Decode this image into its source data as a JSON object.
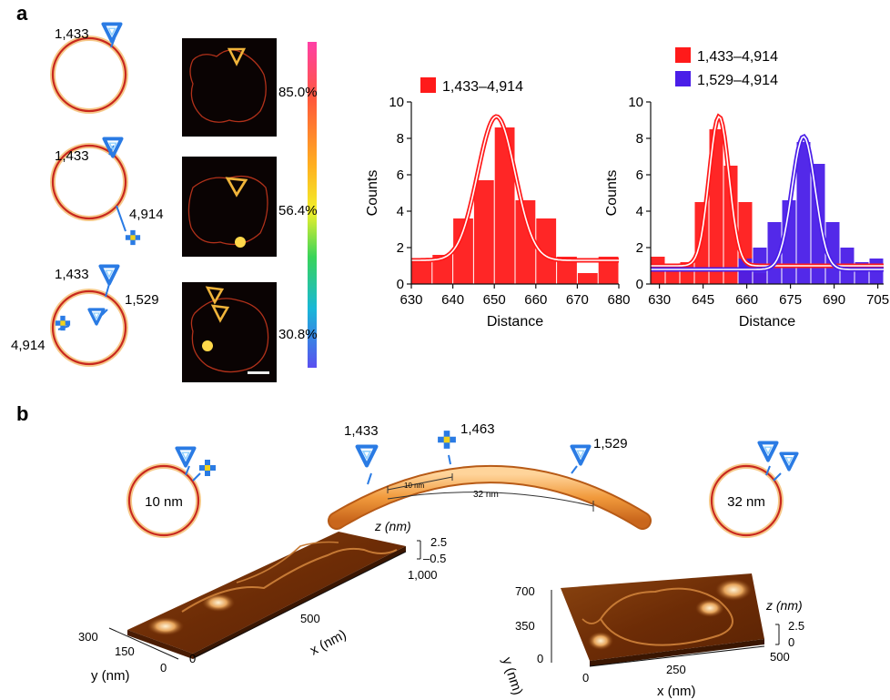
{
  "panel_a": {
    "letter": "a",
    "diagrams": [
      {
        "labels": [
          "1,433"
        ]
      },
      {
        "labels": [
          "1,433",
          "4,914"
        ]
      },
      {
        "labels": [
          "1,433",
          "1,529",
          "4,914"
        ]
      }
    ],
    "colorbar": {
      "labels": [
        "85.0%",
        "56.4%",
        "30.8%"
      ]
    }
  },
  "panel_b": {
    "letter": "b",
    "left_circle_label": "10 nm",
    "right_circle_label": "32 nm",
    "arc": {
      "site_labels": [
        "1,433",
        "1,463",
        "1,529"
      ],
      "dist_short": "10 nm",
      "dist_long": "32 nm"
    },
    "afm_left": {
      "z_axis": "z (nm)",
      "z_ticks": [
        "2.5",
        "–0.5"
      ],
      "x_axis": "x (nm)",
      "x_ticks": [
        "0",
        "500",
        "1,000"
      ],
      "y_axis": "y (nm)",
      "y_ticks": [
        "300",
        "150",
        "0"
      ]
    },
    "afm_right": {
      "z_axis": "z (nm)",
      "z_ticks": [
        "2.5",
        "0"
      ],
      "x_axis": "x (nm)",
      "x_ticks": [
        "0",
        "250",
        "500"
      ],
      "y_axis": "y (nm)",
      "y_ticks": [
        "700",
        "350",
        "0"
      ]
    }
  },
  "colors": {
    "ring": "#c8281e",
    "ring_fill": "#f6c98a",
    "marker": "#2a7be4",
    "red": "#ff1a1a",
    "blue": "#4a1ee8",
    "afm": "#7a3408"
  },
  "chart_data": [
    {
      "type": "bar",
      "xlabel": "Distance",
      "ylabel": "Counts",
      "xlim": [
        630,
        680
      ],
      "ylim": [
        0,
        10
      ],
      "xticks": [
        630,
        640,
        650,
        660,
        670,
        680
      ],
      "yticks": [
        0,
        2,
        4,
        6,
        8,
        10
      ],
      "legend": [
        "1,433–4,914"
      ],
      "series": [
        {
          "name": "1,433–4,914",
          "color": "#ff1a1a",
          "bins": [
            [
              630,
              635,
              1.2
            ],
            [
              635,
              640,
              1.6
            ],
            [
              640,
              645,
              3.6
            ],
            [
              645,
              650,
              5.7
            ],
            [
              650,
              655,
              8.6
            ],
            [
              655,
              660,
              4.6
            ],
            [
              660,
              665,
              3.6
            ],
            [
              665,
              670,
              1.5
            ],
            [
              670,
              675,
              0.6
            ],
            [
              675,
              680,
              1.5
            ]
          ],
          "fit": {
            "mean": 650.5,
            "sd": 4.5,
            "peak": 7.9,
            "base": 1.3
          }
        }
      ]
    },
    {
      "type": "bar",
      "xlabel": "Distance",
      "ylabel": "Counts",
      "xlim": [
        627,
        707
      ],
      "ylim": [
        0,
        10
      ],
      "xticks": [
        630,
        645,
        660,
        675,
        690,
        705
      ],
      "yticks": [
        0,
        2,
        4,
        6,
        8,
        10
      ],
      "legend": [
        "1,433–4,914",
        "1,529–4,914"
      ],
      "series": [
        {
          "name": "1,433–4,914",
          "color": "#ff1a1a",
          "bins": [
            [
              627,
              632,
              1.5
            ],
            [
              632,
              637,
              0.7
            ],
            [
              637,
              642,
              1.2
            ],
            [
              642,
              647,
              4.5
            ],
            [
              647,
              652,
              8.5
            ],
            [
              652,
              657,
              6.5
            ],
            [
              657,
              662,
              4.5
            ],
            [
              662,
              667,
              0.6
            ]
          ],
          "fit": {
            "mean": 650.5,
            "sd": 3.4,
            "peak": 8.2,
            "base": 1.0
          }
        },
        {
          "name": "1,529–4,914",
          "color": "#4a1ee8",
          "bins": [
            [
              657,
              662,
              1.4
            ],
            [
              662,
              667,
              2.0
            ],
            [
              667,
              672,
              3.4
            ],
            [
              672,
              677,
              4.6
            ],
            [
              677,
              682,
              7.8
            ],
            [
              682,
              687,
              6.6
            ],
            [
              687,
              692,
              3.4
            ],
            [
              692,
              697,
              2.0
            ],
            [
              697,
              702,
              1.2
            ],
            [
              702,
              707,
              1.4
            ]
          ],
          "fit": {
            "mean": 679.5,
            "sd": 4.0,
            "peak": 7.3,
            "base": 0.8
          }
        }
      ]
    }
  ]
}
